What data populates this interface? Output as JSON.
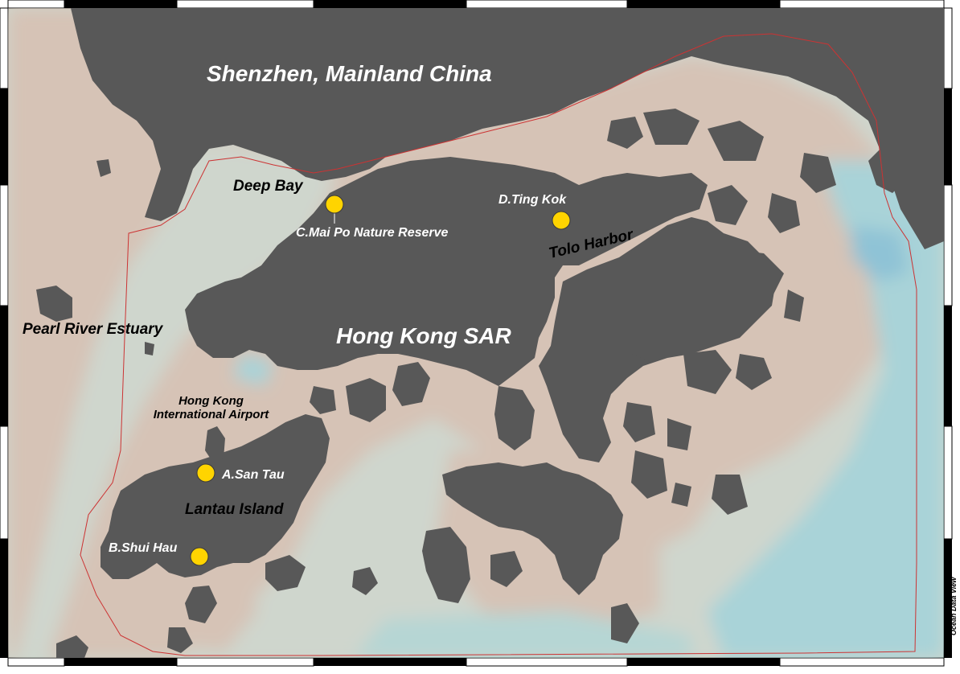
{
  "map": {
    "colors": {
      "land": "#585858",
      "shallow": "#d6c3b6",
      "mid": "#cfd6cd",
      "deep": "#a9d3d8",
      "boundary": "#cc3333",
      "site": "#ffd400"
    },
    "regions": {
      "mainland": "Shenzhen, Mainland China",
      "hk": "Hong Kong SAR",
      "estuary": "Pearl River Estuary",
      "deep_bay": "Deep Bay",
      "tolo": "Tolo Harbor",
      "airport_line1": "Hong Kong",
      "airport_line2": "International Airport",
      "lantau": "Lantau Island"
    },
    "sites": [
      {
        "id": "A",
        "label": "A.San Tau"
      },
      {
        "id": "B",
        "label": "B.Shui Hau"
      },
      {
        "id": "C",
        "label": "C.Mai Po Nature Reserve"
      },
      {
        "id": "D",
        "label": "D.Ting Kok"
      }
    ],
    "credit": "Ocean Data View"
  }
}
